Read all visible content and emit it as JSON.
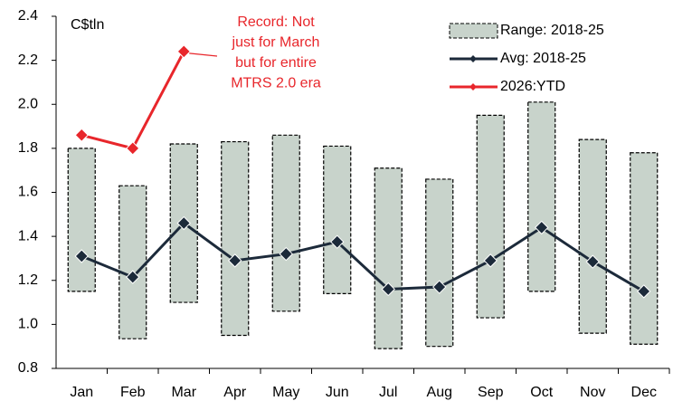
{
  "chart_data": {
    "type": "range-line",
    "unit_label": "C$tln",
    "annotation": [
      "Record: Not",
      "just for March",
      "but for entire",
      "MTRS 2.0 era"
    ],
    "annotation_color": "#e8262b",
    "categories": [
      "Jan",
      "Feb",
      "Mar",
      "Apr",
      "May",
      "Jun",
      "Jul",
      "Aug",
      "Sep",
      "Oct",
      "Nov",
      "Dec"
    ],
    "series": [
      {
        "name": "Range: 2018-25",
        "color": "#c8d3cb",
        "kind": "range",
        "low": [
          1.15,
          0.935,
          1.1,
          0.95,
          1.06,
          1.14,
          0.89,
          0.9,
          1.03,
          1.15,
          0.96,
          0.91
        ],
        "high": [
          1.8,
          1.63,
          1.82,
          1.83,
          1.86,
          1.81,
          1.71,
          1.66,
          1.95,
          2.01,
          1.84,
          1.78
        ]
      },
      {
        "name": "Avg: 2018-25",
        "color": "#1c2a3a",
        "kind": "line",
        "values": [
          1.31,
          1.215,
          1.46,
          1.29,
          1.32,
          1.375,
          1.16,
          1.17,
          1.29,
          1.44,
          1.285,
          1.15
        ]
      },
      {
        "name": "2026:YTD",
        "color": "#e8262b",
        "kind": "line",
        "values": [
          1.86,
          1.8,
          2.24,
          null,
          null,
          null,
          null,
          null,
          null,
          null,
          null,
          null
        ]
      }
    ],
    "ylim": [
      0.8,
      2.4
    ],
    "yticks": [
      0.8,
      {
        "value": 1,
        "label": "1.0"
      },
      1.2,
      1.4,
      1.6,
      1.8,
      {
        "value": 2,
        "label": "2.0"
      },
      2.2,
      2.4
    ],
    "grid": false,
    "legend": "top-right"
  }
}
